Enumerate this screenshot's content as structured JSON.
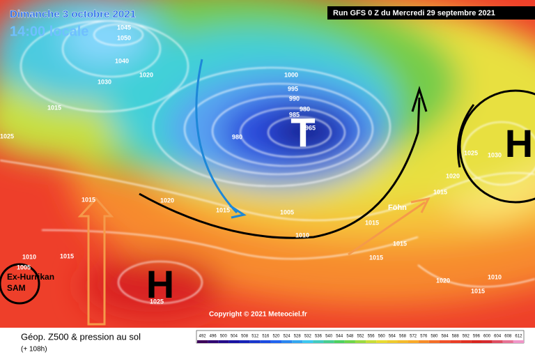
{
  "header": {
    "date": "Dimanche 3 octobre 2021",
    "time": "14:00 locale",
    "run": "Run GFS 0 Z du Mercredi 29 septembre 2021"
  },
  "map": {
    "highs": [
      "H",
      "H"
    ],
    "low": "T",
    "fohn": "Föhn",
    "hurricane": [
      "Ex-Hurrikan",
      "SAM"
    ],
    "copyright": "Copyright © 2021 Meteociel.fr",
    "isobar_labels": [
      1045,
      1050,
      1040,
      1030,
      1020,
      1015,
      1025,
      1000,
      995,
      990,
      985,
      980,
      965,
      980,
      1020,
      1015,
      1005,
      1010,
      1015,
      1015,
      1015,
      1015,
      1010,
      1005,
      1020,
      1010,
      1015,
      1020,
      1015,
      1025,
      1030,
      1025,
      1015
    ]
  },
  "footer": {
    "title": "Géop. Z500 & pression au sol",
    "lead": "(+ 108h)",
    "scale": [
      492,
      496,
      500,
      504,
      508,
      512,
      516,
      520,
      524,
      528,
      532,
      536,
      540,
      544,
      548,
      552,
      556,
      560,
      564,
      568,
      572,
      576,
      580,
      584,
      588,
      592,
      596,
      600,
      604,
      608,
      612
    ]
  }
}
